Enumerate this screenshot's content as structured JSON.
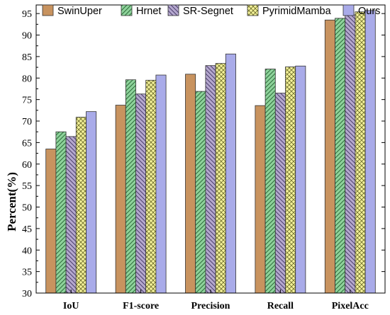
{
  "chart_data": {
    "type": "bar",
    "title": "",
    "xlabel": "",
    "ylabel": "Percent(%)",
    "ylim": [
      30,
      97
    ],
    "yticks": [
      30,
      35,
      40,
      45,
      50,
      55,
      60,
      65,
      70,
      75,
      80,
      85,
      90,
      95
    ],
    "categories": [
      "IoU",
      "F1-score",
      "Precision",
      "Recall",
      "PixelAcc"
    ],
    "legend_position": "top",
    "grid": false,
    "series": [
      {
        "name": "SwinUper",
        "color": "#c8935f",
        "pattern": "solid",
        "values": [
          63.5,
          73.7,
          80.9,
          73.6,
          93.5
        ]
      },
      {
        "name": "Hrnet",
        "color": "#8ed39b",
        "pattern": "hatch-right",
        "values": [
          67.5,
          79.6,
          76.9,
          82.1,
          93.9
        ]
      },
      {
        "name": "SR-Segnet",
        "color": "#b5a8cf",
        "pattern": "hatch-left",
        "values": [
          66.4,
          76.3,
          82.9,
          76.5,
          94.7
        ]
      },
      {
        "name": "PyrimidMamba",
        "color": "#f4f29a",
        "pattern": "crosshatch",
        "values": [
          70.9,
          79.5,
          83.4,
          82.6,
          95.4
        ]
      },
      {
        "name": "Ours",
        "color": "#a9abe9",
        "pattern": "solid",
        "values": [
          72.2,
          80.7,
          85.6,
          82.8,
          95.7
        ]
      }
    ]
  }
}
